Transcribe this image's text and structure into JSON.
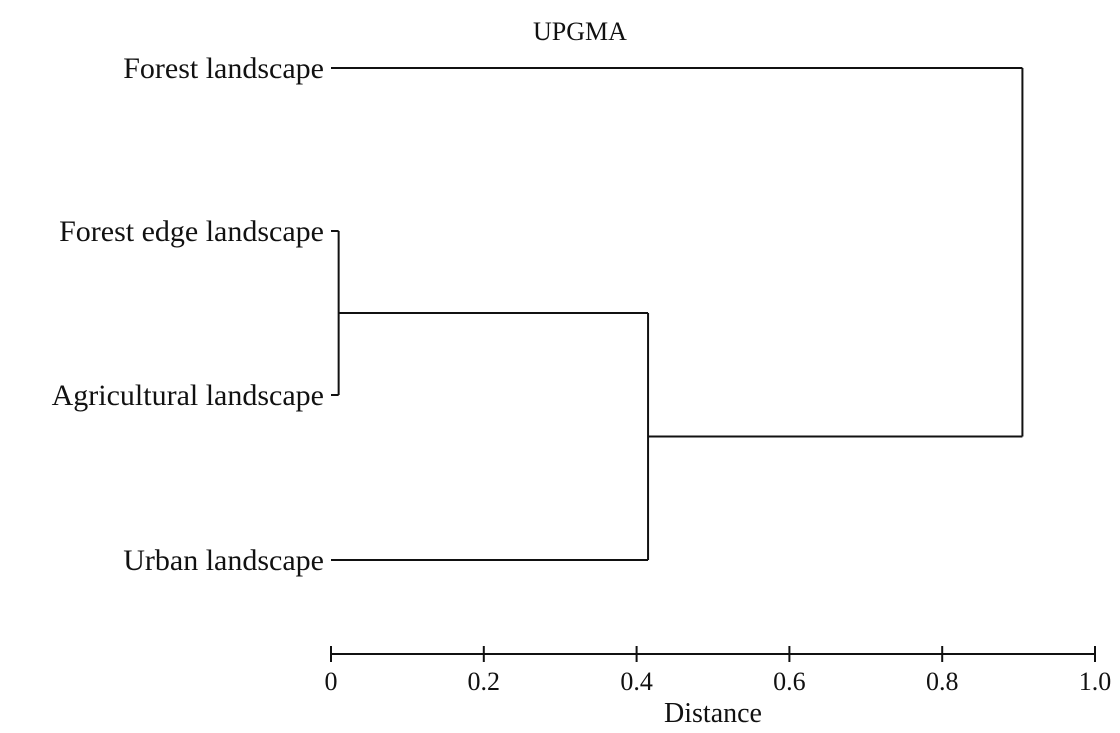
{
  "chart_data": {
    "type": "dendrogram",
    "title": "UPGMA",
    "xlabel": "Distance",
    "xlim": [
      0,
      1.0
    ],
    "ticks": [
      {
        "value": 0,
        "label": "0"
      },
      {
        "value": 0.2,
        "label": "0.2"
      },
      {
        "value": 0.4,
        "label": "0.4"
      },
      {
        "value": 0.6,
        "label": "0.6"
      },
      {
        "value": 0.8,
        "label": "0.8"
      },
      {
        "value": 1.0,
        "label": "1.0"
      }
    ],
    "leaves": [
      "Forest landscape",
      "Forest edge landscape",
      "Agricultural landscape",
      "Urban landscape"
    ],
    "merges": [
      {
        "members": [
          "Forest edge landscape",
          "Agricultural landscape"
        ],
        "height": 0.01
      },
      {
        "members": [
          "Forest edge landscape",
          "Agricultural landscape",
          "Urban landscape"
        ],
        "height": 0.415
      },
      {
        "members": [
          "Forest landscape",
          "Forest edge landscape",
          "Agricultural landscape",
          "Urban landscape"
        ],
        "height": 0.905
      }
    ]
  }
}
